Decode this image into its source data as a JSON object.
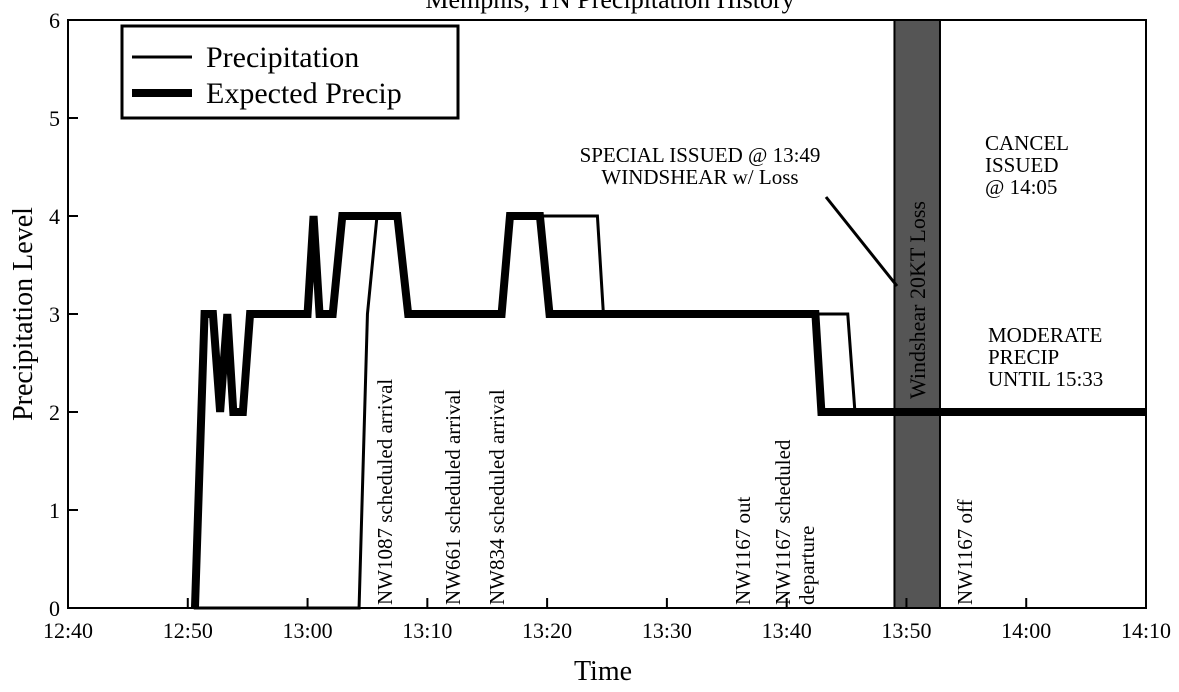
{
  "chart_data": {
    "type": "line",
    "title": "Memphis, TN Precipitation History",
    "xlabel": "Time",
    "ylabel": "Precipitation Level",
    "xlim": [
      0,
      90
    ],
    "xticks": [
      {
        "value": 0,
        "label": "12:40"
      },
      {
        "value": 10,
        "label": "12:50"
      },
      {
        "value": 20,
        "label": "13:00"
      },
      {
        "value": 30,
        "label": "13:10"
      },
      {
        "value": 40,
        "label": "13:20"
      },
      {
        "value": 50,
        "label": "13:30"
      },
      {
        "value": 60,
        "label": "13:40"
      },
      {
        "value": 70,
        "label": "13:50"
      },
      {
        "value": 80,
        "label": "14:00"
      },
      {
        "value": 90,
        "label": "14:10"
      }
    ],
    "ylim": [
      0,
      6
    ],
    "yticks": [
      0,
      1,
      2,
      3,
      4,
      5,
      6
    ],
    "legend": "upper left",
    "series": [
      {
        "name": "Precipitation",
        "color": "#000000",
        "width": 3,
        "x": [
          10.5,
          24.3,
          25,
          25.8,
          27.6,
          28.5,
          36,
          37,
          44.2,
          44.7,
          65.1,
          65.7,
          90
        ],
        "values": [
          0,
          0,
          3,
          4,
          4,
          3,
          3,
          4,
          4,
          3,
          3,
          2,
          2
        ]
      },
      {
        "name": "Expected Precip",
        "color": "#000000",
        "width": 8,
        "x": [
          10.6,
          11.4,
          12.1,
          12.7,
          13.3,
          13.8,
          14.6,
          15.2,
          20,
          20.5,
          21,
          22.1,
          22.9,
          27.5,
          28.4,
          36.2,
          36.9,
          39.4,
          40.2,
          62.4,
          62.9,
          90
        ],
        "values": [
          0,
          3,
          3,
          2,
          3,
          2,
          2,
          3,
          3,
          4,
          3,
          3,
          4,
          4,
          3,
          3,
          4,
          4,
          3,
          3,
          2,
          2
        ]
      }
    ],
    "band": {
      "x": [
        69,
        72.8
      ],
      "color": "#555555",
      "label": "Windshear 20KT Loss"
    },
    "annotations": [
      {
        "lines": [
          "NW1087 scheduled arrival"
        ]
      },
      {
        "lines": [
          "NW661 scheduled arrival"
        ]
      },
      {
        "lines": [
          "NW834 scheduled arrival"
        ]
      },
      {
        "lines": [
          "NW1167 out"
        ]
      },
      {
        "lines": [
          "NW1167 scheduled",
          "departure"
        ]
      },
      {
        "lines": [
          "NW1167 off"
        ]
      },
      {
        "lines": [
          "SPECIAL ISSUED @ 13:49",
          "WINDSHEAR w/ Loss"
        ]
      },
      {
        "lines": [
          "CANCEL",
          "ISSUED",
          "@ 14:05"
        ]
      },
      {
        "lines": [
          "MODERATE",
          "PRECIP",
          "UNTIL 15:33"
        ]
      }
    ]
  }
}
